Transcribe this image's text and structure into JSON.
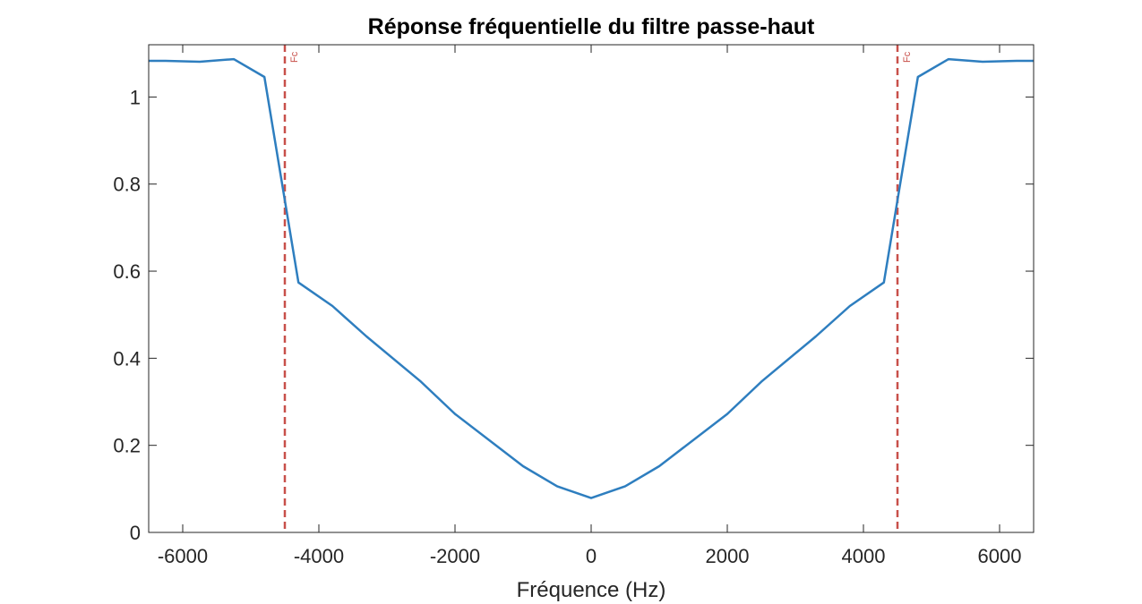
{
  "chart_data": {
    "type": "line",
    "title": "Réponse fréquentielle du filtre passe-haut",
    "xlabel": "Fréquence (Hz)",
    "ylabel": "",
    "xlim": [
      -6500,
      6500
    ],
    "ylim": [
      0,
      1.12
    ],
    "xticks": [
      -6000,
      -4000,
      -2000,
      0,
      2000,
      4000,
      6000
    ],
    "xtick_labels": [
      "-6000",
      "-4000",
      "-2000",
      "0",
      "2000",
      "4000",
      "6000"
    ],
    "yticks": [
      0,
      0.2,
      0.4,
      0.6,
      0.8,
      1
    ],
    "ytick_labels": [
      "0",
      "0.2",
      "0.4",
      "0.6",
      "0.8",
      "1"
    ],
    "grid": false,
    "series": [
      {
        "name": "",
        "color": "#2e7ebf",
        "x": [
          -6500,
          -6250,
          -5750,
          -5250,
          -4800,
          -4300,
          -3800,
          -3300,
          -2500,
          -2000,
          -1000,
          -500,
          0,
          500,
          1000,
          2000,
          2500,
          3300,
          3800,
          4300,
          4800,
          5250,
          5750,
          6250,
          6500
        ],
        "y": [
          1.083,
          1.083,
          1.081,
          1.087,
          1.046,
          0.574,
          0.52,
          0.45,
          0.346,
          0.272,
          0.152,
          0.106,
          0.079,
          0.106,
          0.152,
          0.272,
          0.346,
          0.45,
          0.52,
          0.574,
          1.046,
          1.087,
          1.081,
          1.083,
          1.083
        ]
      }
    ],
    "markers": [
      {
        "x": -4500,
        "label": "Fc",
        "color": "#c8504a"
      },
      {
        "x": 4500,
        "label": "Fc",
        "color": "#c8504a"
      }
    ]
  }
}
